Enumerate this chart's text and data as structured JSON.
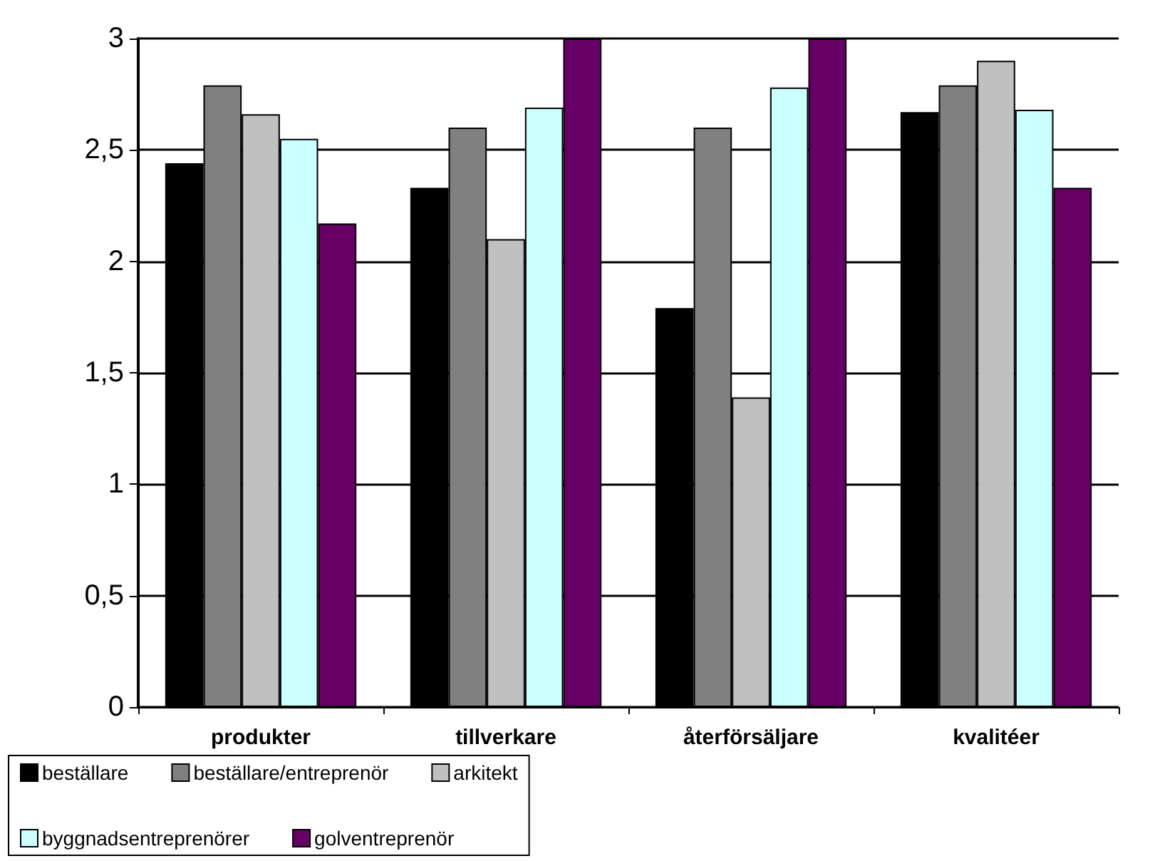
{
  "chart_data": {
    "type": "bar",
    "categories": [
      "produkter",
      "tillverkare",
      "återförsäljare",
      "kvalitéer"
    ],
    "series": [
      {
        "name": "beställare",
        "color": "#000000",
        "values": [
          2.44,
          2.33,
          1.79,
          2.67
        ]
      },
      {
        "name": "beställare/entreprenör",
        "color": "#808080",
        "values": [
          2.79,
          2.6,
          2.6,
          2.79
        ]
      },
      {
        "name": "arkitekt",
        "color": "#c0c0c0",
        "values": [
          2.66,
          2.1,
          1.39,
          2.9
        ]
      },
      {
        "name": "byggnadsentreprenörer",
        "color": "#ccffff",
        "values": [
          2.55,
          2.69,
          2.78,
          2.68
        ]
      },
      {
        "name": "golventreprenör",
        "color": "#660066",
        "values": [
          2.17,
          3,
          3,
          2.33
        ]
      }
    ],
    "ylim": [
      0,
      3
    ],
    "yticks": [
      0,
      {
        "value": 0.5,
        "label": "0,5"
      },
      1,
      {
        "value": 1.5,
        "label": "1,5"
      },
      2,
      {
        "value": 2.5,
        "label": "2,5"
      },
      3
    ],
    "grid": "y",
    "legend": "bottom"
  }
}
